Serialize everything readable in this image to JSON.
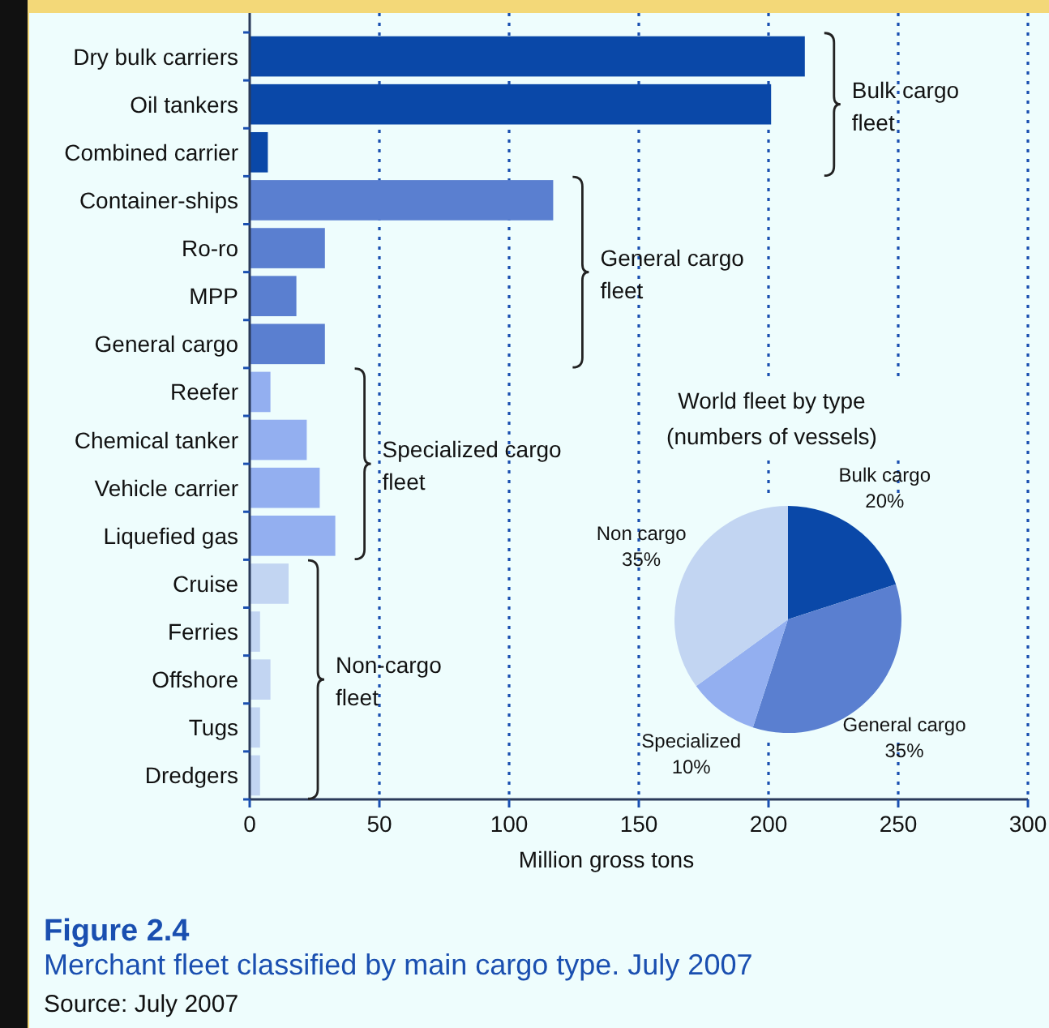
{
  "chart_data": [
    {
      "type": "bar",
      "orientation": "horizontal",
      "title": "Figure 2.4",
      "subtitle": "Merchant fleet classified by main cargo type. July 2007",
      "xlabel": "Million gross tons",
      "categories": [
        "Dry bulk carriers",
        "Oil tankers",
        "Combined carrier",
        "Container-ships",
        "Ro-ro",
        "MPP",
        "General cargo",
        "Reefer",
        "Chemical tanker",
        "Vehicle carrier",
        "Liquefied gas",
        "Cruise",
        "Ferries",
        "Offshore",
        "Tugs",
        "Dredgers"
      ],
      "values": [
        214,
        201,
        7,
        117,
        29,
        18,
        29,
        8,
        22,
        27,
        33,
        15,
        4,
        8,
        4,
        4
      ],
      "colors": [
        "#0a48a8",
        "#0a48a8",
        "#0a48a8",
        "#5a7fd0",
        "#5a7fd0",
        "#5a7fd0",
        "#5a7fd0",
        "#93aff0",
        "#93aff0",
        "#93aff0",
        "#93aff0",
        "#c2d5f2",
        "#c2d5f2",
        "#c2d5f2",
        "#c2d5f2",
        "#c2d5f2"
      ],
      "xlim": [
        0,
        300
      ],
      "xticks": [
        0,
        50,
        100,
        150,
        200,
        250,
        300
      ],
      "grid": "x",
      "annotations": [
        "Bulk cargo fleet",
        "General cargo fleet",
        "Specialized cargo fleet",
        "Non-cargo fleet",
        "Source: July 2007"
      ]
    },
    {
      "type": "pie",
      "title": "World fleet by type (numbers of vessels)",
      "categories": [
        "Bulk cargo",
        "General cargo",
        "Specialized",
        "Non cargo"
      ],
      "values": [
        20,
        35,
        10,
        35
      ],
      "value_labels": [
        "20%",
        "35%",
        "10%",
        "35%"
      ],
      "colors": [
        "#0a48a8",
        "#5a7fd0",
        "#93aff0",
        "#c2d5f2"
      ]
    }
  ]
}
